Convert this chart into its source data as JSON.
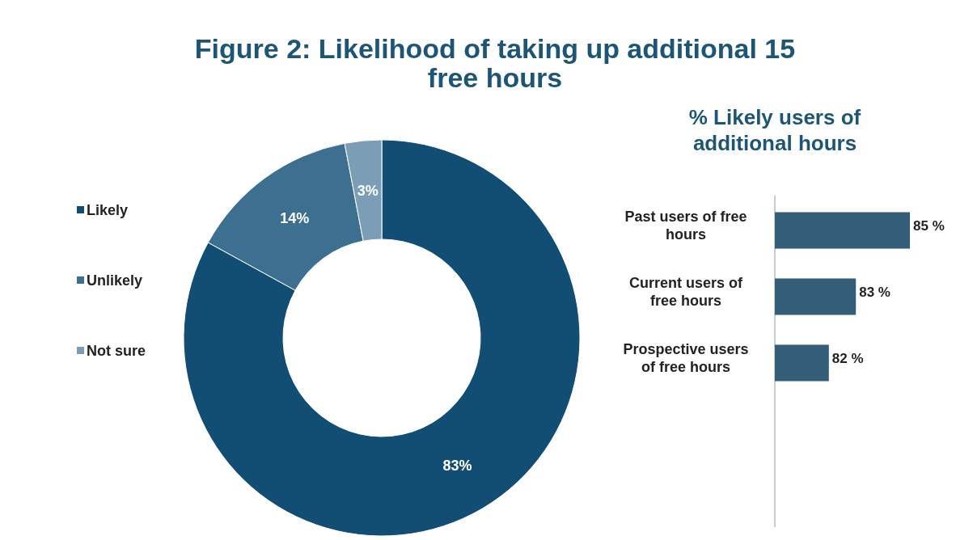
{
  "chart_data": [
    {
      "type": "donut",
      "title": "Figure 2: Likelihood of taking up additional  15 free hours",
      "categories": [
        "Likely",
        "Unlikely",
        "Not sure"
      ],
      "values": [
        83,
        14,
        3
      ],
      "colors": [
        "#124e73",
        "#3d7090",
        "#7b9db5"
      ],
      "value_labels": [
        "83%",
        "14%",
        "3%"
      ],
      "legend": "left"
    },
    {
      "type": "bar",
      "orientation": "horizontal",
      "title": "%  Likely users of additional  hours",
      "categories": [
        "Past users of free hours",
        "Current users of free hours",
        "Prospective users of free hours"
      ],
      "values": [
        85,
        83,
        82
      ],
      "color": "#345d78",
      "xlim": [
        80,
        85
      ],
      "value_labels": [
        "85 %",
        "83 %",
        "82 %"
      ],
      "tick_labels": "y"
    }
  ]
}
